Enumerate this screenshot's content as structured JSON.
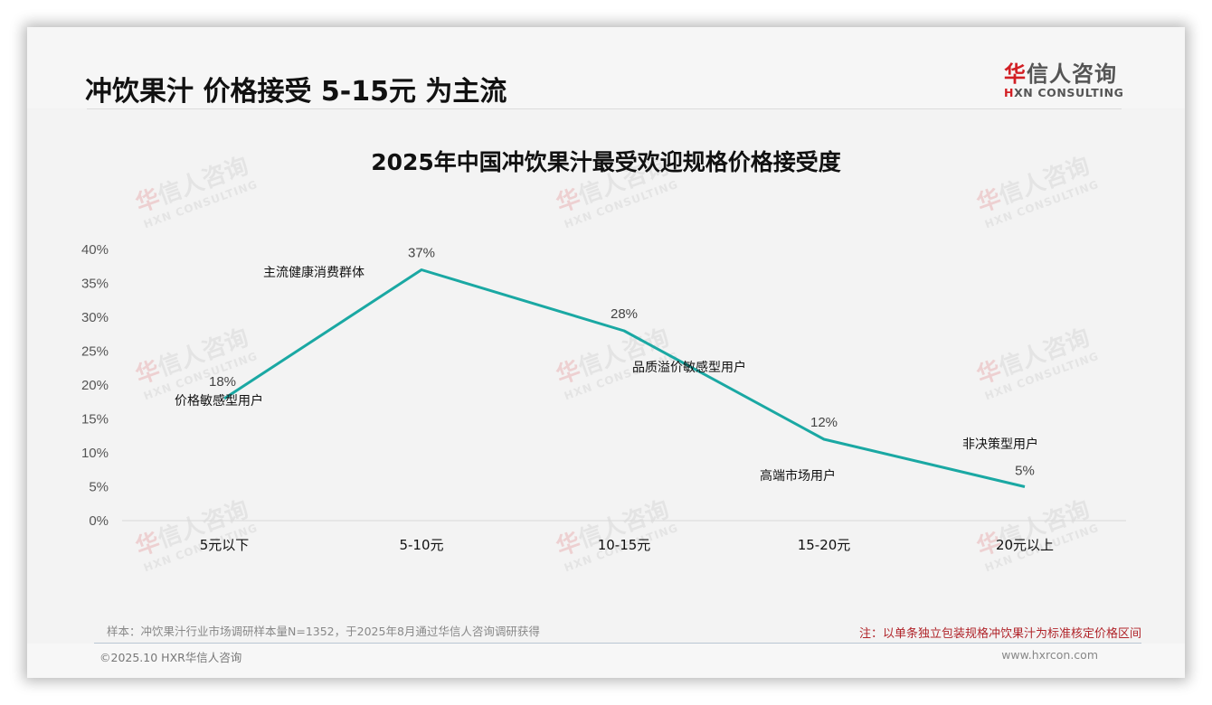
{
  "header": {
    "title": "冲饮果汁 价格接受 5-15元 为主流",
    "logo": {
      "cn_accent": "华",
      "cn_rest": "信人咨询",
      "en_accent": "H",
      "en_rest": "XN CONSULTING"
    }
  },
  "watermark": {
    "cn_accent": "华",
    "cn_rest": "信人咨询",
    "en": "HXN CONSULTING"
  },
  "colors": {
    "line": "#1aa8a3",
    "note_red": "#b0242a",
    "brand_red": "#d21f24",
    "axis": "#d9d9d9"
  },
  "chart_data": {
    "type": "line",
    "title": "2025年中国冲饮果汁最受欢迎规格价格接受度",
    "xlabel": "",
    "ylabel": "",
    "categories": [
      "5元以下",
      "5-10元",
      "10-15元",
      "15-20元",
      "20元以上"
    ],
    "series": [
      {
        "name": "价格接受度",
        "values": [
          18,
          37,
          28,
          12,
          5
        ],
        "color": "#1aa8a3"
      }
    ],
    "data_labels": [
      "18%",
      "37%",
      "28%",
      "12%",
      "5%"
    ],
    "annotations": [
      "价格敏感型用户",
      "主流健康消费群体",
      "品质溢价敏感型用户",
      "高端市场用户",
      "非决策型用户"
    ],
    "yticks": [
      "0%",
      "5%",
      "10%",
      "15%",
      "20%",
      "25%",
      "30%",
      "35%",
      "40%"
    ],
    "ylim": [
      0,
      40
    ],
    "grid": false,
    "legend": "none"
  },
  "footer": {
    "sample": "样本：冲饮果汁行业市场调研样本量N=1352，于2025年8月通过华信人咨询调研获得",
    "note": "注：以单条独立包装规格冲饮果汁为标准核定价格区间",
    "copyright": "©2025.10 HXR华信人咨询",
    "website": "www.hxrcon.com"
  }
}
